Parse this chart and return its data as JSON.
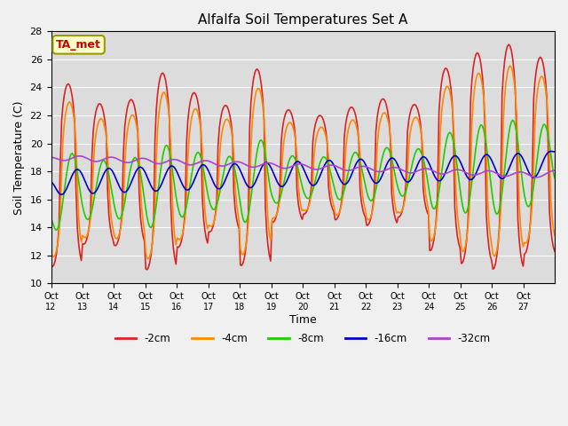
{
  "title": "Alfalfa Soil Temperatures Set A",
  "xlabel": "Time",
  "ylabel": "Soil Temperature (C)",
  "ylim": [
    10,
    28
  ],
  "background_color": "#f0f0f0",
  "plot_bg_color": "#dcdcdc",
  "grid_color": "#ffffff",
  "annotation_text": "TA_met",
  "annotation_bg": "#ffffcc",
  "annotation_border": "#999900",
  "annotation_text_color": "#cc0000",
  "series_colors": {
    "-2cm": "#dd2222",
    "-4cm": "#ff8800",
    "-8cm": "#22cc00",
    "-16cm": "#0000cc",
    "-32cm": "#aa44cc"
  },
  "xtick_labels": [
    "Oct 12",
    "Oct 13",
    "Oct 14",
    "Oct 15",
    "Oct 16",
    "Oct 17",
    "Oct 18",
    "Oct 19",
    "Oct 20",
    "Oct 21",
    "Oct 22",
    "Oct 23",
    "Oct 24",
    "Oct 25",
    "Oct 26",
    "Oct 27"
  ],
  "ytick_positions": [
    10,
    12,
    14,
    16,
    18,
    20,
    22,
    24,
    26,
    28
  ],
  "legend_entries": [
    "-2cm",
    "-4cm",
    "-8cm",
    "-16cm",
    "-32cm"
  ]
}
